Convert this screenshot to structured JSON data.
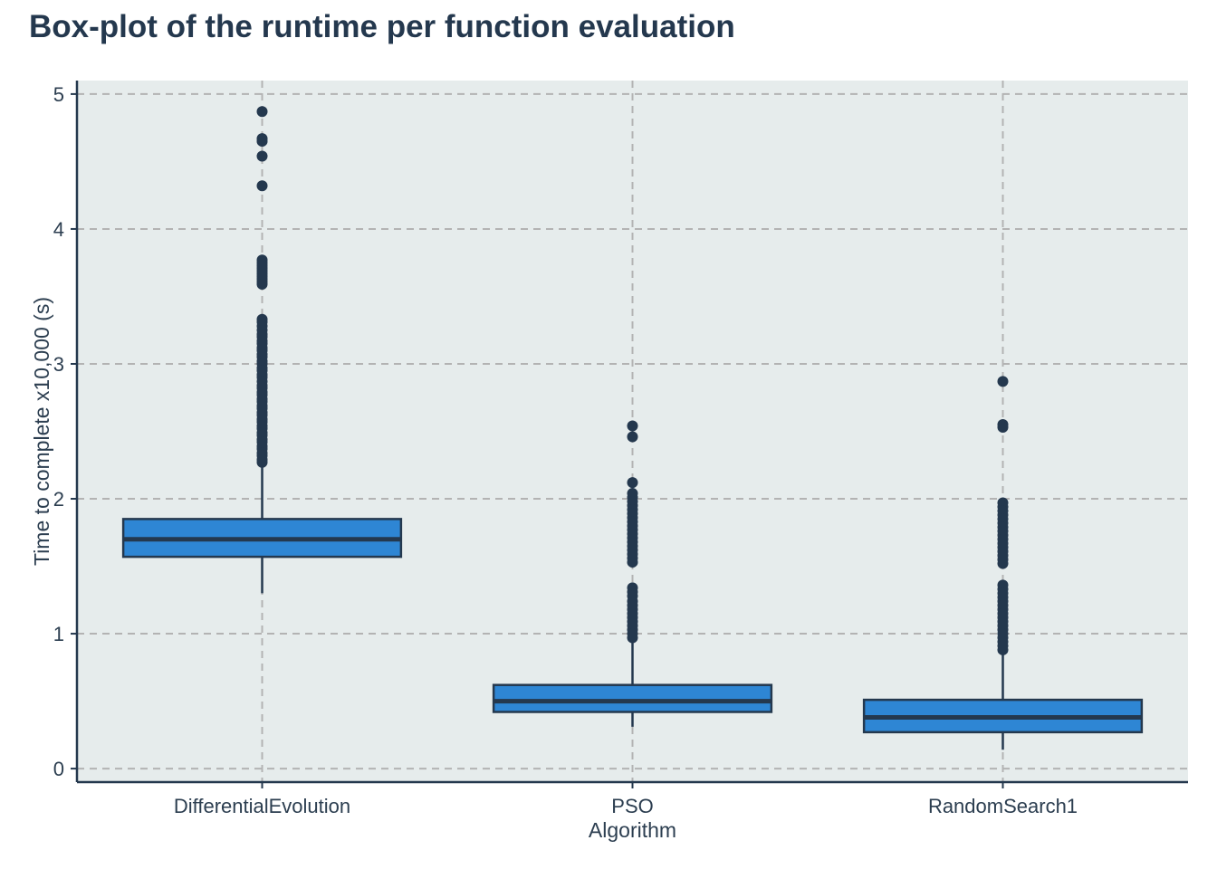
{
  "chart_data": {
    "type": "box",
    "title": "Box-plot of the runtime per function evaluation",
    "xlabel": "Algorithm",
    "ylabel": "Time to complete x10,000 (s)",
    "ylim": [
      -0.1,
      5.1
    ],
    "yticks": [
      0,
      1,
      2,
      3,
      4,
      5
    ],
    "grid": true,
    "colors": {
      "panel_bg": "#e6ecec",
      "box_fill": "#2e86d4",
      "stroke": "#24384e",
      "grid": "#b3b3b3"
    },
    "categories": [
      "DifferentialEvolution",
      "PSO",
      "RandomSearch1"
    ],
    "boxes": [
      {
        "name": "DifferentialEvolution",
        "whisker_low": 1.3,
        "q1": 1.57,
        "median": 1.7,
        "q3": 1.85,
        "whisker_high": 2.25,
        "outliers": [
          4.87,
          4.67,
          4.65,
          4.54,
          4.32,
          3.77,
          3.75,
          3.73,
          3.71,
          3.69,
          3.67,
          3.65,
          3.63,
          3.61,
          3.59,
          3.33,
          3.31,
          3.28,
          3.25,
          3.22,
          3.2,
          3.17,
          3.15,
          3.12,
          3.1,
          3.07,
          3.05,
          3.02,
          3.0,
          2.97,
          2.95,
          2.92,
          2.9,
          2.87,
          2.84,
          2.82,
          2.79,
          2.77,
          2.74,
          2.72,
          2.69,
          2.67,
          2.64,
          2.62,
          2.59,
          2.57,
          2.54,
          2.52,
          2.49,
          2.47,
          2.44,
          2.42,
          2.39,
          2.37,
          2.34,
          2.32,
          2.29,
          2.27
        ]
      },
      {
        "name": "PSO",
        "whisker_low": 0.31,
        "q1": 0.42,
        "median": 0.5,
        "q3": 0.62,
        "whisker_high": 0.96,
        "outliers": [
          2.54,
          2.46,
          2.12,
          2.04,
          2.01,
          1.98,
          1.95,
          1.92,
          1.89,
          1.86,
          1.83,
          1.8,
          1.77,
          1.74,
          1.71,
          1.68,
          1.65,
          1.62,
          1.59,
          1.56,
          1.53,
          1.34,
          1.31,
          1.28,
          1.24,
          1.21,
          1.18,
          1.15,
          1.12,
          1.09,
          1.06,
          1.03,
          1.0,
          0.97
        ]
      },
      {
        "name": "RandomSearch1",
        "whisker_low": 0.14,
        "q1": 0.27,
        "median": 0.38,
        "q3": 0.51,
        "whisker_high": 0.87,
        "outliers": [
          2.87,
          2.55,
          2.53,
          1.97,
          1.94,
          1.91,
          1.88,
          1.85,
          1.82,
          1.79,
          1.76,
          1.73,
          1.7,
          1.67,
          1.64,
          1.61,
          1.58,
          1.55,
          1.52,
          1.36,
          1.33,
          1.3,
          1.27,
          1.24,
          1.21,
          1.18,
          1.15,
          1.12,
          1.09,
          1.06,
          1.03,
          1.0,
          0.97,
          0.94,
          0.91,
          0.88
        ]
      }
    ]
  }
}
